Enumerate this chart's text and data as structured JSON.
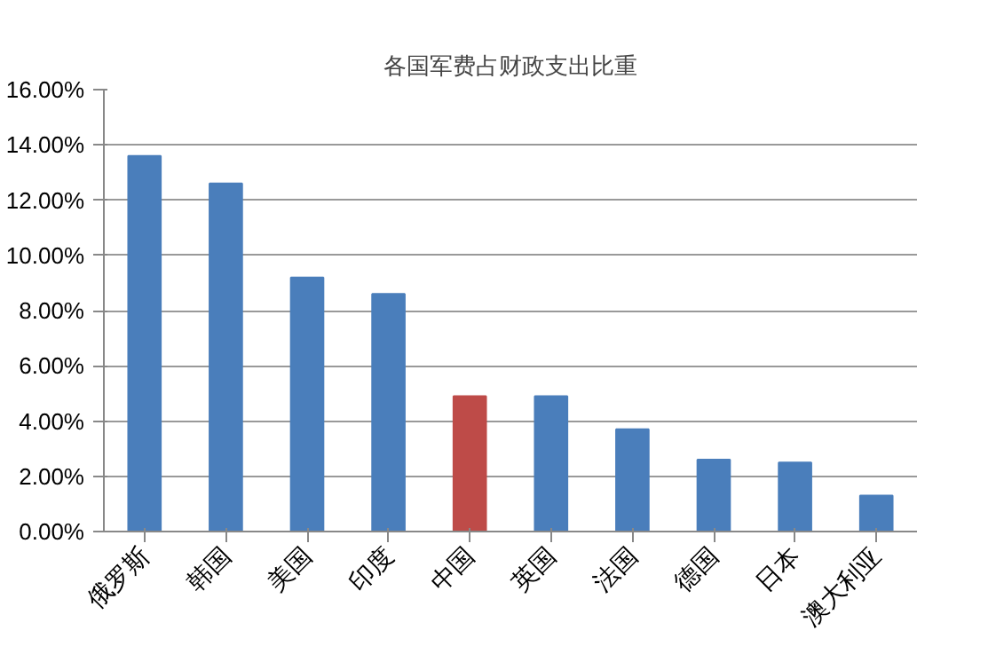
{
  "chart_data": {
    "type": "bar",
    "title": "各国军费占财政支出比重",
    "categories": [
      "俄罗斯",
      "韩国",
      "美国",
      "印度",
      "中国",
      "英国",
      "法国",
      "德国",
      "日本",
      "澳大利亚"
    ],
    "values": [
      13.6,
      12.6,
      9.2,
      8.6,
      4.9,
      4.9,
      3.7,
      2.6,
      2.5,
      1.3
    ],
    "colors": [
      "#4a7ebb",
      "#4a7ebb",
      "#4a7ebb",
      "#4a7ebb",
      "#be4b48",
      "#4a7ebb",
      "#4a7ebb",
      "#4a7ebb",
      "#4a7ebb",
      "#4a7ebb"
    ],
    "ylim": [
      0,
      16
    ],
    "yticks": [
      {
        "value": 0,
        "label": "0.00%"
      },
      {
        "value": 2,
        "label": "2.00%"
      },
      {
        "value": 4,
        "label": "4.00%"
      },
      {
        "value": 6,
        "label": "6.00%"
      },
      {
        "value": 8,
        "label": "8.00%"
      },
      {
        "value": 10,
        "label": "10.00%"
      },
      {
        "value": 12,
        "label": "12.00%"
      },
      {
        "value": 14,
        "label": "14.00%"
      },
      {
        "value": 16,
        "label": "16.00%"
      }
    ],
    "grid": "y"
  }
}
